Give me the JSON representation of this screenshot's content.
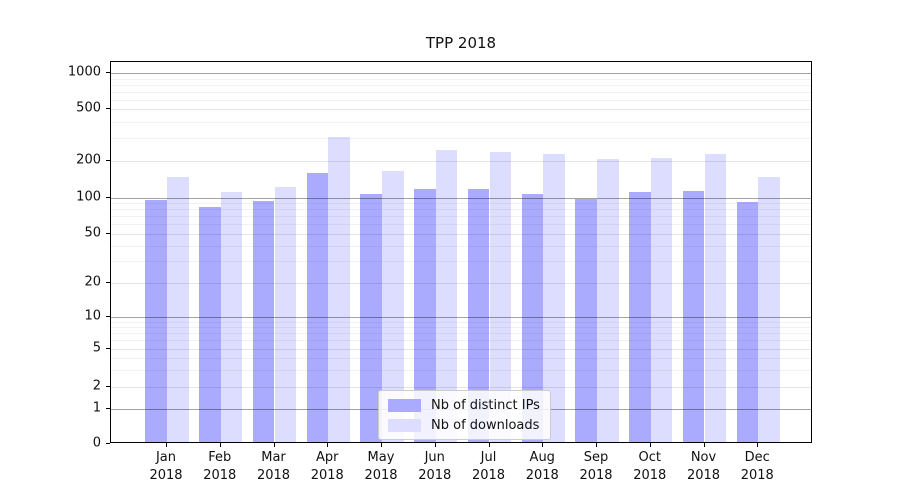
{
  "title": "TPP 2018",
  "chart_data": {
    "type": "bar",
    "title": "TPP 2018",
    "categories": [
      "Jan",
      "Feb",
      "Mar",
      "Apr",
      "May",
      "Jun",
      "Jul",
      "Aug",
      "Sep",
      "Oct",
      "Nov",
      "Dec"
    ],
    "x_year_label": "2018",
    "series": [
      {
        "name": "Nb of distinct IPs",
        "color": "#aaaaff",
        "values": [
          92,
          81,
          90,
          155,
          104,
          113,
          113,
          104,
          93,
          108,
          110,
          88
        ]
      },
      {
        "name": "Nb of downloads",
        "color": "#ddddff",
        "values": [
          143,
          108,
          117,
          298,
          160,
          234,
          225,
          219,
          199,
          203,
          217,
          142
        ]
      }
    ],
    "yscale": "symlog",
    "yticks": [
      0,
      1,
      2,
      5,
      10,
      20,
      50,
      100,
      200,
      500,
      1000
    ],
    "ytick_labels": [
      "0",
      "1",
      "2",
      "5",
      "10",
      "20",
      "50",
      "100",
      "200",
      "500",
      "1000"
    ],
    "ylim": [
      0,
      1200
    ],
    "grid": true,
    "legend_position": "lower center"
  }
}
